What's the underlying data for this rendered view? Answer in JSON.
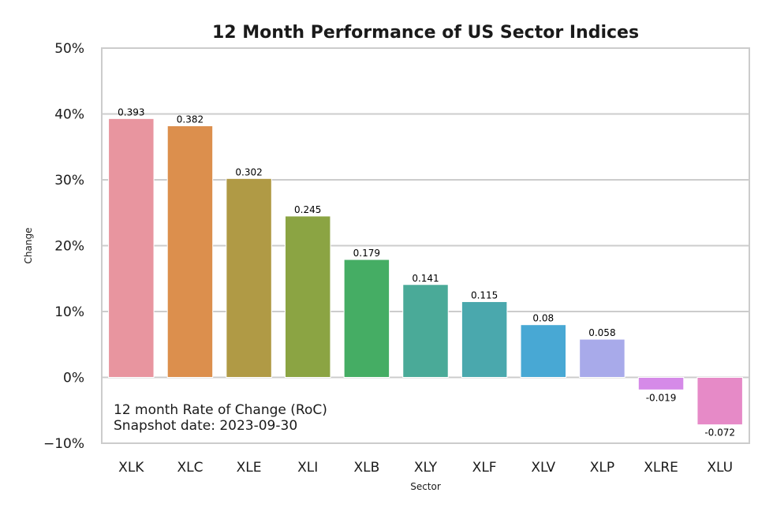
{
  "chart_data": {
    "type": "bar",
    "title": "12 Month Performance of US Sector Indices",
    "xlabel": "Sector",
    "ylabel": "Change",
    "categories": [
      "XLK",
      "XLC",
      "XLE",
      "XLI",
      "XLB",
      "XLY",
      "XLF",
      "XLV",
      "XLP",
      "XLRE",
      "XLU"
    ],
    "values": [
      0.393,
      0.382,
      0.302,
      0.245,
      0.179,
      0.141,
      0.115,
      0.08,
      0.058,
      -0.019,
      -0.072
    ],
    "value_labels": [
      "0.393",
      "0.382",
      "0.302",
      "0.245",
      "0.179",
      "0.141",
      "0.115",
      "0.08",
      "0.058",
      "-0.019",
      "-0.072"
    ],
    "colors": [
      "#e8959f",
      "#dc8f4d",
      "#b09a45",
      "#8ba443",
      "#45ad64",
      "#4aaa98",
      "#4aa8ad",
      "#48a8d4",
      "#a8aaea",
      "#d58ae8",
      "#e68ac7"
    ],
    "ylim": [
      -0.1,
      0.5
    ],
    "yticks": [
      -0.1,
      0.0,
      0.1,
      0.2,
      0.3,
      0.4,
      0.5
    ],
    "ytick_labels": [
      "−10%",
      "0%",
      "10%",
      "20%",
      "30%",
      "40%",
      "50%"
    ],
    "grid": true,
    "annotation": [
      "12 month Rate of Change (RoC)",
      "Snapshot date: 2023-09-30"
    ]
  }
}
